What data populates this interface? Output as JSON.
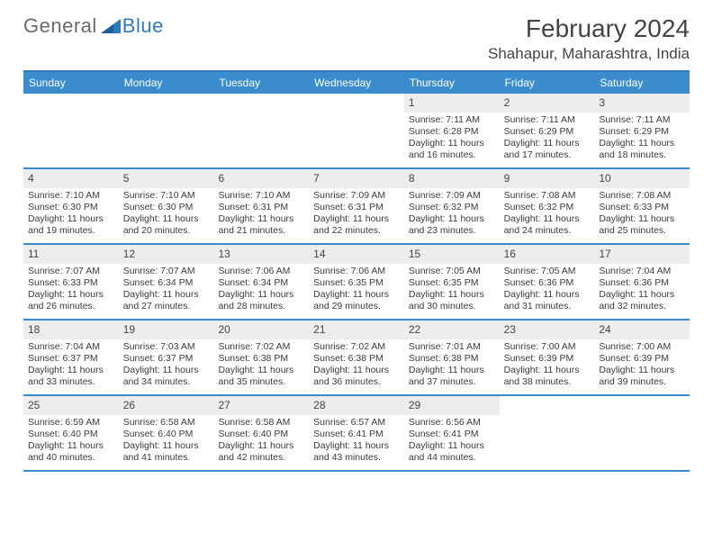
{
  "brand": {
    "part1": "General",
    "part2": "Blue"
  },
  "colors": {
    "accent": "#3a8ccc",
    "accentDark": "#2f7bbf",
    "cellNumBg": "#ededed",
    "text": "#3a3a3a"
  },
  "header": {
    "title": "February 2024",
    "location": "Shahapur, Maharashtra, India"
  },
  "dayNames": [
    "Sunday",
    "Monday",
    "Tuesday",
    "Wednesday",
    "Thursday",
    "Friday",
    "Saturday"
  ],
  "weeks": [
    [
      {
        "empty": true
      },
      {
        "empty": true
      },
      {
        "empty": true
      },
      {
        "empty": true
      },
      {
        "num": "1",
        "sunrise": "Sunrise: 7:11 AM",
        "sunset": "Sunset: 6:28 PM",
        "day1": "Daylight: 11 hours",
        "day2": "and 16 minutes."
      },
      {
        "num": "2",
        "sunrise": "Sunrise: 7:11 AM",
        "sunset": "Sunset: 6:29 PM",
        "day1": "Daylight: 11 hours",
        "day2": "and 17 minutes."
      },
      {
        "num": "3",
        "sunrise": "Sunrise: 7:11 AM",
        "sunset": "Sunset: 6:29 PM",
        "day1": "Daylight: 11 hours",
        "day2": "and 18 minutes."
      }
    ],
    [
      {
        "num": "4",
        "sunrise": "Sunrise: 7:10 AM",
        "sunset": "Sunset: 6:30 PM",
        "day1": "Daylight: 11 hours",
        "day2": "and 19 minutes."
      },
      {
        "num": "5",
        "sunrise": "Sunrise: 7:10 AM",
        "sunset": "Sunset: 6:30 PM",
        "day1": "Daylight: 11 hours",
        "day2": "and 20 minutes."
      },
      {
        "num": "6",
        "sunrise": "Sunrise: 7:10 AM",
        "sunset": "Sunset: 6:31 PM",
        "day1": "Daylight: 11 hours",
        "day2": "and 21 minutes."
      },
      {
        "num": "7",
        "sunrise": "Sunrise: 7:09 AM",
        "sunset": "Sunset: 6:31 PM",
        "day1": "Daylight: 11 hours",
        "day2": "and 22 minutes."
      },
      {
        "num": "8",
        "sunrise": "Sunrise: 7:09 AM",
        "sunset": "Sunset: 6:32 PM",
        "day1": "Daylight: 11 hours",
        "day2": "and 23 minutes."
      },
      {
        "num": "9",
        "sunrise": "Sunrise: 7:08 AM",
        "sunset": "Sunset: 6:32 PM",
        "day1": "Daylight: 11 hours",
        "day2": "and 24 minutes."
      },
      {
        "num": "10",
        "sunrise": "Sunrise: 7:08 AM",
        "sunset": "Sunset: 6:33 PM",
        "day1": "Daylight: 11 hours",
        "day2": "and 25 minutes."
      }
    ],
    [
      {
        "num": "11",
        "sunrise": "Sunrise: 7:07 AM",
        "sunset": "Sunset: 6:33 PM",
        "day1": "Daylight: 11 hours",
        "day2": "and 26 minutes."
      },
      {
        "num": "12",
        "sunrise": "Sunrise: 7:07 AM",
        "sunset": "Sunset: 6:34 PM",
        "day1": "Daylight: 11 hours",
        "day2": "and 27 minutes."
      },
      {
        "num": "13",
        "sunrise": "Sunrise: 7:06 AM",
        "sunset": "Sunset: 6:34 PM",
        "day1": "Daylight: 11 hours",
        "day2": "and 28 minutes."
      },
      {
        "num": "14",
        "sunrise": "Sunrise: 7:06 AM",
        "sunset": "Sunset: 6:35 PM",
        "day1": "Daylight: 11 hours",
        "day2": "and 29 minutes."
      },
      {
        "num": "15",
        "sunrise": "Sunrise: 7:05 AM",
        "sunset": "Sunset: 6:35 PM",
        "day1": "Daylight: 11 hours",
        "day2": "and 30 minutes."
      },
      {
        "num": "16",
        "sunrise": "Sunrise: 7:05 AM",
        "sunset": "Sunset: 6:36 PM",
        "day1": "Daylight: 11 hours",
        "day2": "and 31 minutes."
      },
      {
        "num": "17",
        "sunrise": "Sunrise: 7:04 AM",
        "sunset": "Sunset: 6:36 PM",
        "day1": "Daylight: 11 hours",
        "day2": "and 32 minutes."
      }
    ],
    [
      {
        "num": "18",
        "sunrise": "Sunrise: 7:04 AM",
        "sunset": "Sunset: 6:37 PM",
        "day1": "Daylight: 11 hours",
        "day2": "and 33 minutes."
      },
      {
        "num": "19",
        "sunrise": "Sunrise: 7:03 AM",
        "sunset": "Sunset: 6:37 PM",
        "day1": "Daylight: 11 hours",
        "day2": "and 34 minutes."
      },
      {
        "num": "20",
        "sunrise": "Sunrise: 7:02 AM",
        "sunset": "Sunset: 6:38 PM",
        "day1": "Daylight: 11 hours",
        "day2": "and 35 minutes."
      },
      {
        "num": "21",
        "sunrise": "Sunrise: 7:02 AM",
        "sunset": "Sunset: 6:38 PM",
        "day1": "Daylight: 11 hours",
        "day2": "and 36 minutes."
      },
      {
        "num": "22",
        "sunrise": "Sunrise: 7:01 AM",
        "sunset": "Sunset: 6:38 PM",
        "day1": "Daylight: 11 hours",
        "day2": "and 37 minutes."
      },
      {
        "num": "23",
        "sunrise": "Sunrise: 7:00 AM",
        "sunset": "Sunset: 6:39 PM",
        "day1": "Daylight: 11 hours",
        "day2": "and 38 minutes."
      },
      {
        "num": "24",
        "sunrise": "Sunrise: 7:00 AM",
        "sunset": "Sunset: 6:39 PM",
        "day1": "Daylight: 11 hours",
        "day2": "and 39 minutes."
      }
    ],
    [
      {
        "num": "25",
        "sunrise": "Sunrise: 6:59 AM",
        "sunset": "Sunset: 6:40 PM",
        "day1": "Daylight: 11 hours",
        "day2": "and 40 minutes."
      },
      {
        "num": "26",
        "sunrise": "Sunrise: 6:58 AM",
        "sunset": "Sunset: 6:40 PM",
        "day1": "Daylight: 11 hours",
        "day2": "and 41 minutes."
      },
      {
        "num": "27",
        "sunrise": "Sunrise: 6:58 AM",
        "sunset": "Sunset: 6:40 PM",
        "day1": "Daylight: 11 hours",
        "day2": "and 42 minutes."
      },
      {
        "num": "28",
        "sunrise": "Sunrise: 6:57 AM",
        "sunset": "Sunset: 6:41 PM",
        "day1": "Daylight: 11 hours",
        "day2": "and 43 minutes."
      },
      {
        "num": "29",
        "sunrise": "Sunrise: 6:56 AM",
        "sunset": "Sunset: 6:41 PM",
        "day1": "Daylight: 11 hours",
        "day2": "and 44 minutes."
      },
      {
        "empty": true
      },
      {
        "empty": true
      }
    ]
  ]
}
